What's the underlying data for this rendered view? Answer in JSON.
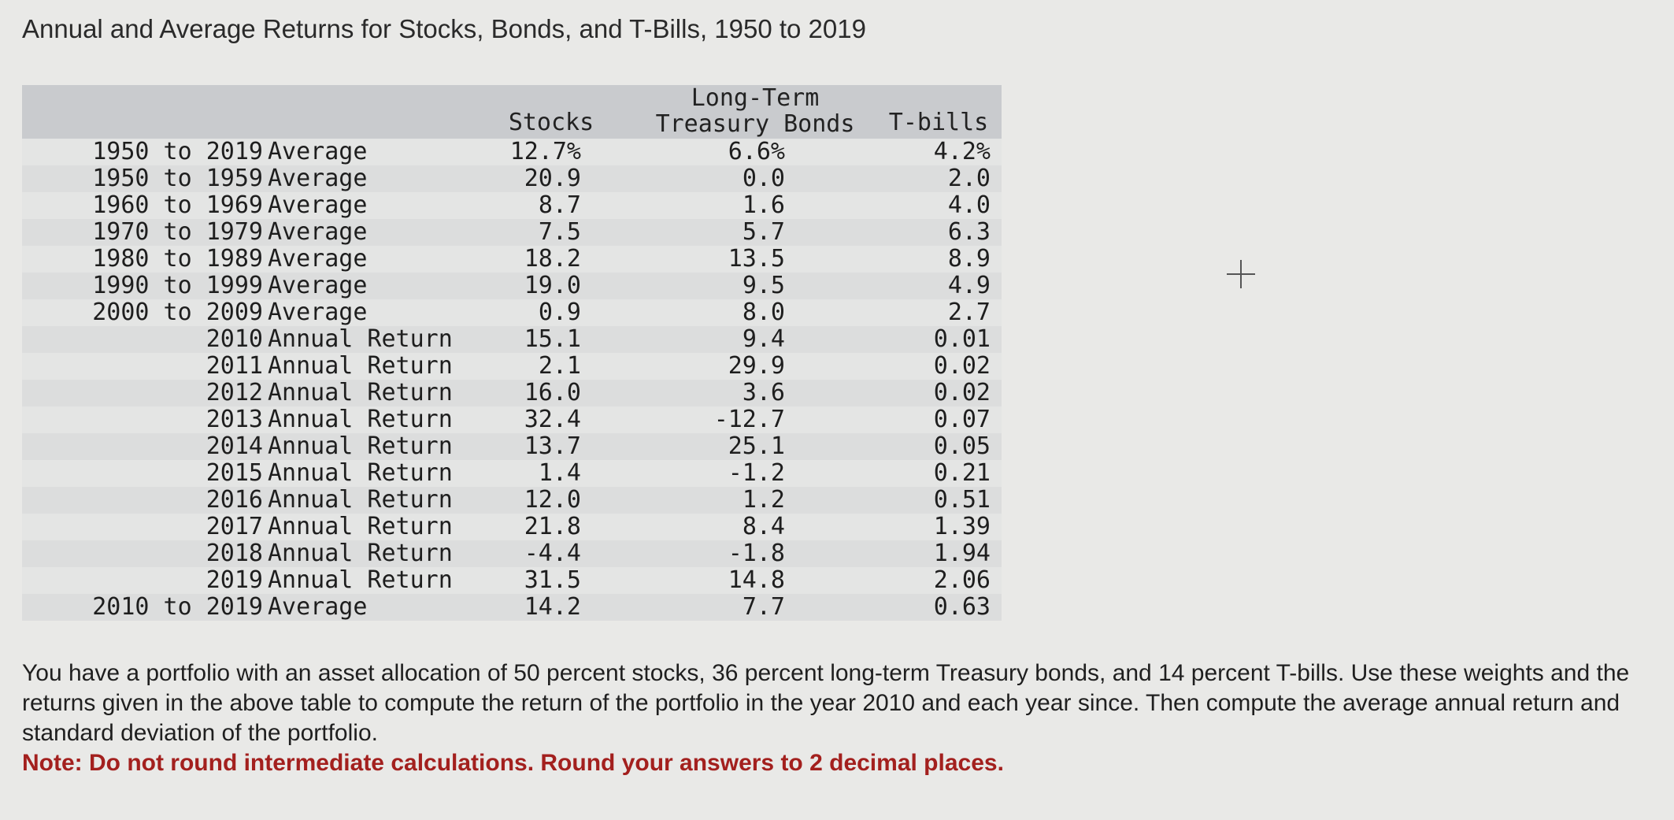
{
  "title": "Annual and Average Returns for Stocks, Bonds, and T-Bills, 1950 to 2019",
  "table": {
    "headers": {
      "stocks": "Stocks",
      "bonds_line1": "Long-Term",
      "bonds_line2": "Treasury Bonds",
      "tbills": "T-bills"
    },
    "rows": [
      {
        "period": "1950 to 2019",
        "kind": "Average",
        "stocks": "12.7%",
        "bonds": "6.6%",
        "tbills": "4.2%"
      },
      {
        "period": "1950 to 1959",
        "kind": "Average",
        "stocks": "20.9",
        "bonds": "0.0",
        "tbills": "2.0"
      },
      {
        "period": "1960 to 1969",
        "kind": "Average",
        "stocks": "8.7",
        "bonds": "1.6",
        "tbills": "4.0"
      },
      {
        "period": "1970 to 1979",
        "kind": "Average",
        "stocks": "7.5",
        "bonds": "5.7",
        "tbills": "6.3"
      },
      {
        "period": "1980 to 1989",
        "kind": "Average",
        "stocks": "18.2",
        "bonds": "13.5",
        "tbills": "8.9"
      },
      {
        "period": "1990 to 1999",
        "kind": "Average",
        "stocks": "19.0",
        "bonds": "9.5",
        "tbills": "4.9"
      },
      {
        "period": "2000 to 2009",
        "kind": "Average",
        "stocks": "0.9",
        "bonds": "8.0",
        "tbills": "2.7"
      },
      {
        "period": "2010",
        "kind": "Annual Return",
        "stocks": "15.1",
        "bonds": "9.4",
        "tbills": "0.01"
      },
      {
        "period": "2011",
        "kind": "Annual Return",
        "stocks": "2.1",
        "bonds": "29.9",
        "tbills": "0.02"
      },
      {
        "period": "2012",
        "kind": "Annual Return",
        "stocks": "16.0",
        "bonds": "3.6",
        "tbills": "0.02"
      },
      {
        "period": "2013",
        "kind": "Annual Return",
        "stocks": "32.4",
        "bonds": "-12.7",
        "tbills": "0.07"
      },
      {
        "period": "2014",
        "kind": "Annual Return",
        "stocks": "13.7",
        "bonds": "25.1",
        "tbills": "0.05"
      },
      {
        "period": "2015",
        "kind": "Annual Return",
        "stocks": "1.4",
        "bonds": "-1.2",
        "tbills": "0.21"
      },
      {
        "period": "2016",
        "kind": "Annual Return",
        "stocks": "12.0",
        "bonds": "1.2",
        "tbills": "0.51"
      },
      {
        "period": "2017",
        "kind": "Annual Return",
        "stocks": "21.8",
        "bonds": "8.4",
        "tbills": "1.39"
      },
      {
        "period": "2018",
        "kind": "Annual Return",
        "stocks": "-4.4",
        "bonds": "-1.8",
        "tbills": "1.94"
      },
      {
        "period": "2019",
        "kind": "Annual Return",
        "stocks": "31.5",
        "bonds": "14.8",
        "tbills": "2.06"
      },
      {
        "period": "2010 to 2019",
        "kind": "Average",
        "stocks": "14.2",
        "bonds": "7.7",
        "tbills": "0.63"
      }
    ]
  },
  "question": "You have a portfolio with an asset allocation of 50 percent stocks, 36 percent long-term Treasury bonds, and 14 percent T-bills. Use these weights and the returns given in the above table to compute the return of the portfolio in the year 2010 and each year since. Then compute the average annual return and standard deviation of the portfolio.",
  "note": "Note: Do not round intermediate calculations. Round your answers to 2 decimal places.",
  "colors": {
    "background": "#e9e9e7",
    "header_band": "#c9cbce",
    "note_red": "#a3201e"
  },
  "icons": {
    "cursor": "crosshair-cursor-icon"
  }
}
